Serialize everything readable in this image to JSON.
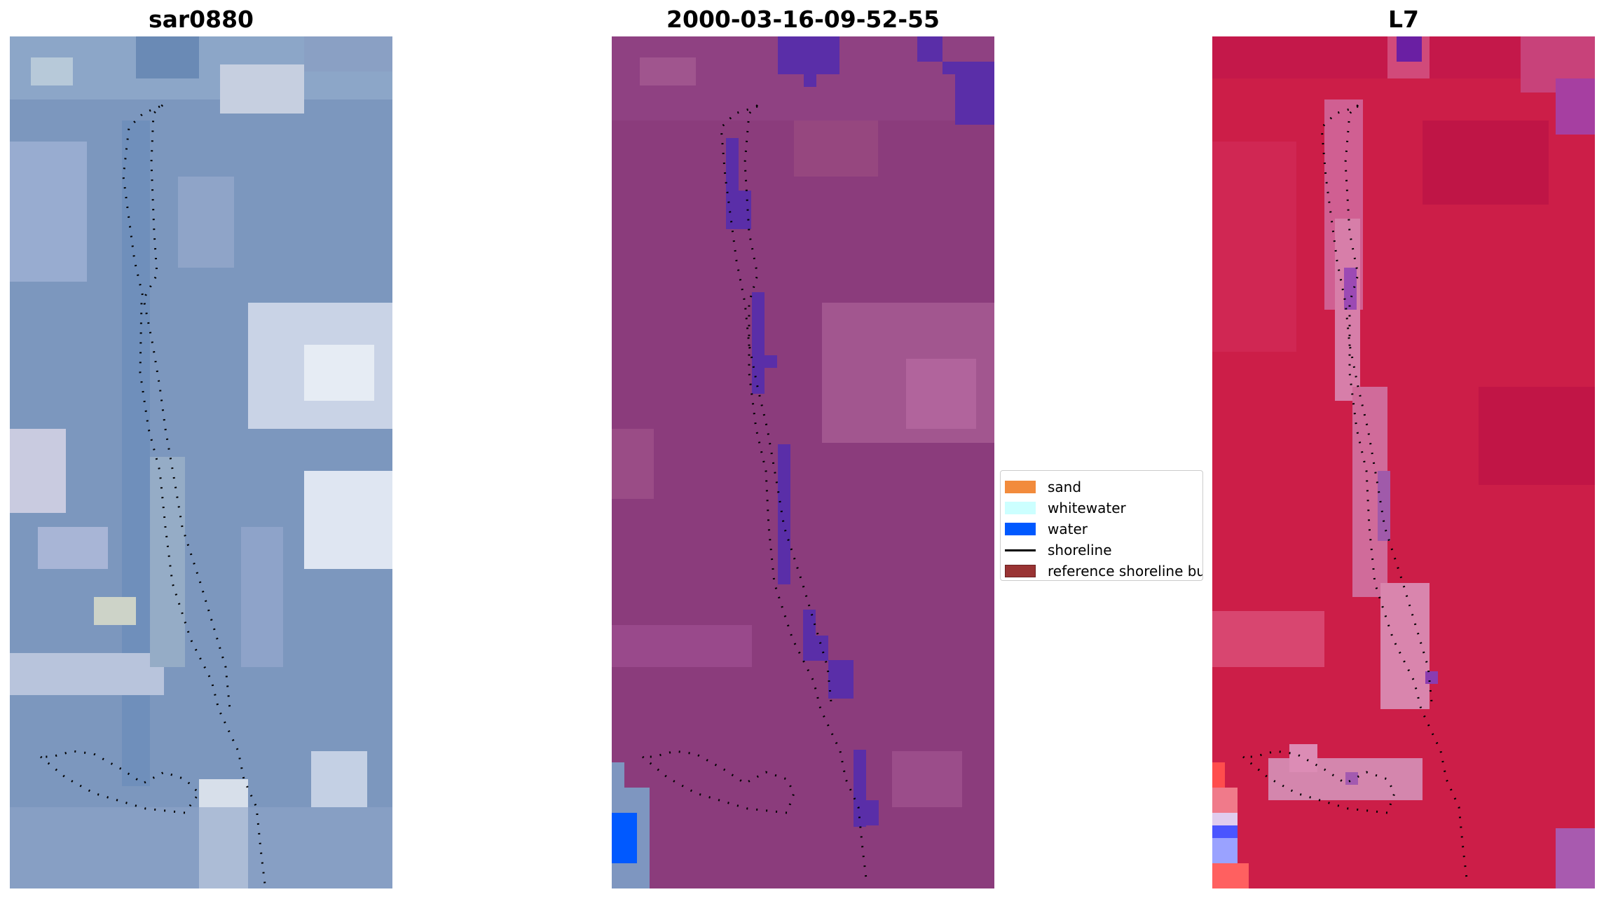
{
  "panels": [
    {
      "title": "sar0880",
      "kind": "rgb-satellite-image"
    },
    {
      "title": "2000-03-16-09-52-55",
      "kind": "classified-image"
    },
    {
      "title": "L7",
      "kind": "index-image"
    }
  ],
  "legend": {
    "items": [
      {
        "label": "sand",
        "type": "patch",
        "color": "#f28b3c"
      },
      {
        "label": "whitewater",
        "type": "patch",
        "color": "#ccffff"
      },
      {
        "label": "water",
        "type": "patch",
        "color": "#0059ff"
      },
      {
        "label": "shoreline",
        "type": "line",
        "color": "#000000"
      },
      {
        "label": "reference shoreline buffer",
        "type": "patch",
        "color": "#993333"
      }
    ]
  },
  "colors": {
    "rgb_base": "#7c97be",
    "classified_base": "#8b3c7c",
    "classified_water": "#5a2ea8",
    "index_base": "#cc1e48",
    "shoreline_dots": "#000000"
  }
}
